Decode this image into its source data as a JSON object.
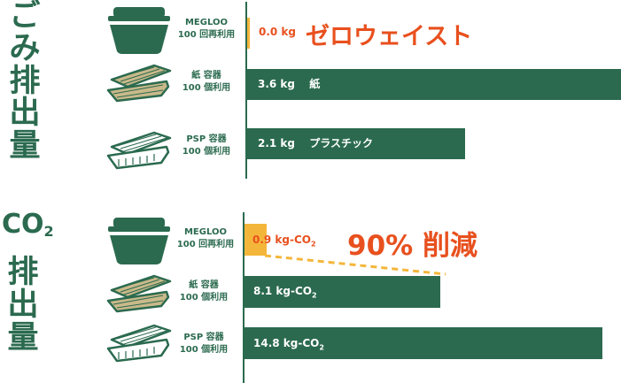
{
  "colors": {
    "green": "#2b6a4f",
    "orange": "#e8501e",
    "yellow": "#f4b63a",
    "pale": "#c9b98a"
  },
  "waste_section": {
    "title_chars": [
      "ご",
      "み",
      "排",
      "出",
      "量"
    ]
  },
  "co2_section": {
    "title_main": "CO",
    "title_sub": "2",
    "title_chars": [
      "排",
      "出",
      "量"
    ]
  },
  "categories": [
    {
      "id": "megloo",
      "name": "MEGLOO",
      "usage": "100 回再利用",
      "icon": "megloo-container-icon"
    },
    {
      "id": "paper",
      "name": "紙 容器",
      "usage": "100 個利用",
      "icon": "paper-container-icon"
    },
    {
      "id": "psp",
      "name": "PSP 容器",
      "usage": "100 個利用",
      "icon": "psp-container-icon"
    }
  ],
  "chart_data": [
    {
      "type": "bar",
      "orientation": "horizontal",
      "title": "ごみ排出量",
      "categories": [
        "MEGLOO 100 回再利用",
        "紙 容器 100 個利用",
        "PSP 容器 100 個利用"
      ],
      "values": [
        0.0,
        3.6,
        2.1
      ],
      "unit": "kg",
      "xlim": [
        0,
        4.2
      ],
      "labels": [
        {
          "value": "0.0 kg",
          "note": ""
        },
        {
          "value": "3.6 kg",
          "note": "紙"
        },
        {
          "value": "2.1 kg",
          "note": "プラスチック"
        }
      ],
      "annotation": "ゼロウェイスト",
      "grid": false
    },
    {
      "type": "bar",
      "orientation": "horizontal",
      "title": "CO2 排出量",
      "categories": [
        "MEGLOO 100 回再利用",
        "紙 容器 100 個利用",
        "PSP 容器 100 個利用"
      ],
      "values": [
        0.9,
        8.1,
        14.8
      ],
      "unit": "kg-CO2",
      "xlim": [
        0,
        16.3
      ],
      "labels": [
        {
          "value": "0.9 kg-CO",
          "sub": "2"
        },
        {
          "value": "8.1 kg-CO",
          "sub": "2"
        },
        {
          "value": "14.8 kg-CO",
          "sub": "2"
        }
      ],
      "annotation": "90% 削減",
      "grid": false
    }
  ]
}
